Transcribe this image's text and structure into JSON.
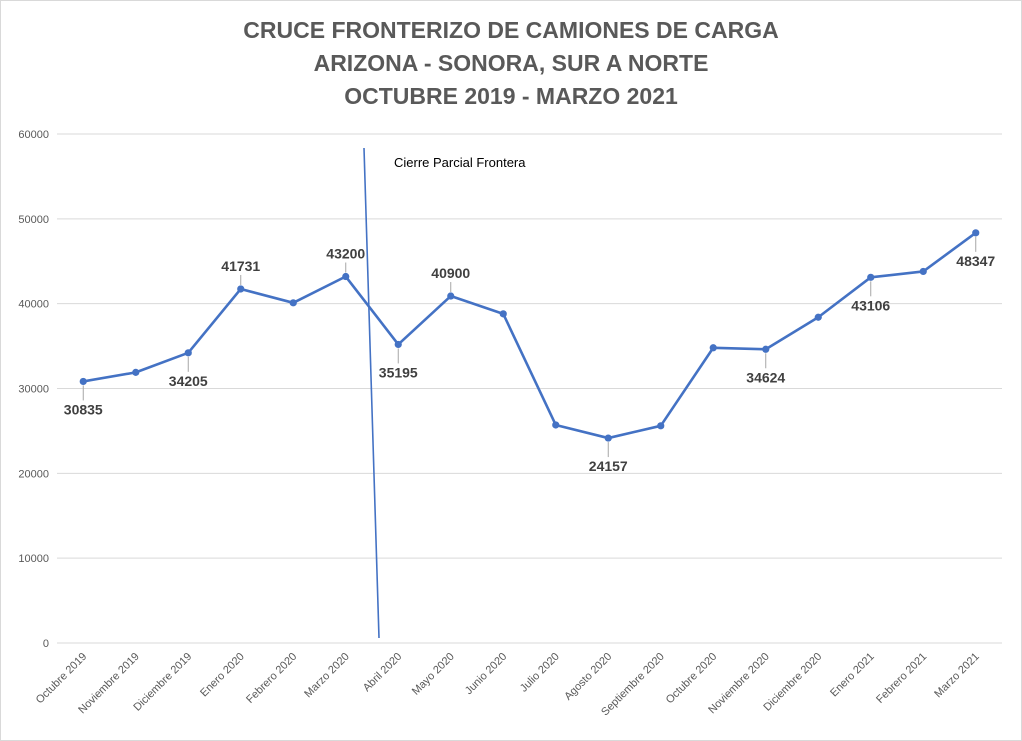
{
  "chart_data": {
    "type": "line",
    "title_lines": [
      "CRUCE FRONTERIZO DE CAMIONES DE CARGA",
      "ARIZONA - SONORA, SUR A NORTE",
      "OCTUBRE 2019 - MARZO 2021"
    ],
    "categories": [
      "Octubre 2019",
      "Noviembre 2019",
      "Diciembre 2019",
      "Enero 2020",
      "Febrero 2020",
      "Marzo 2020",
      "Abril 2020",
      "Mayo 2020",
      "Junio 2020",
      "Julio 2020",
      "Agosto 2020",
      "Septiembre 2020",
      "Octubre 2020",
      "Noviembre 2020",
      "Diciembre 2020",
      "Enero 2021",
      "Febrero 2021",
      "Marzo 2021"
    ],
    "series": [
      {
        "values": [
          30835,
          31900,
          34205,
          41731,
          40100,
          43200,
          35195,
          40900,
          38800,
          25700,
          24157,
          25600,
          34800,
          34624,
          38400,
          43106,
          43800,
          48347
        ],
        "color": "#4472C4"
      }
    ],
    "data_labels": [
      {
        "index": 0,
        "text": "30835",
        "pos": "below"
      },
      {
        "index": 2,
        "text": "34205",
        "pos": "below"
      },
      {
        "index": 3,
        "text": "41731",
        "pos": "above"
      },
      {
        "index": 5,
        "text": "43200",
        "pos": "above"
      },
      {
        "index": 6,
        "text": "35195",
        "pos": "below"
      },
      {
        "index": 7,
        "text": "40900",
        "pos": "above"
      },
      {
        "index": 10,
        "text": "24157",
        "pos": "below"
      },
      {
        "index": 13,
        "text": "34624",
        "pos": "below"
      },
      {
        "index": 15,
        "text": "43106",
        "pos": "below"
      },
      {
        "index": 17,
        "text": "48347",
        "pos": "below"
      }
    ],
    "yticks": [
      0,
      10000,
      20000,
      30000,
      40000,
      50000,
      60000
    ],
    "ylim": [
      0,
      60000
    ],
    "grid": true,
    "annotation": {
      "text": "Cierre Parcial Frontera",
      "between": [
        "Marzo 2020",
        "Abril 2020"
      ]
    },
    "colors": {
      "line": "#4472C4",
      "grid": "#d9d9d9",
      "title": "#595959",
      "label": "#404040"
    }
  }
}
